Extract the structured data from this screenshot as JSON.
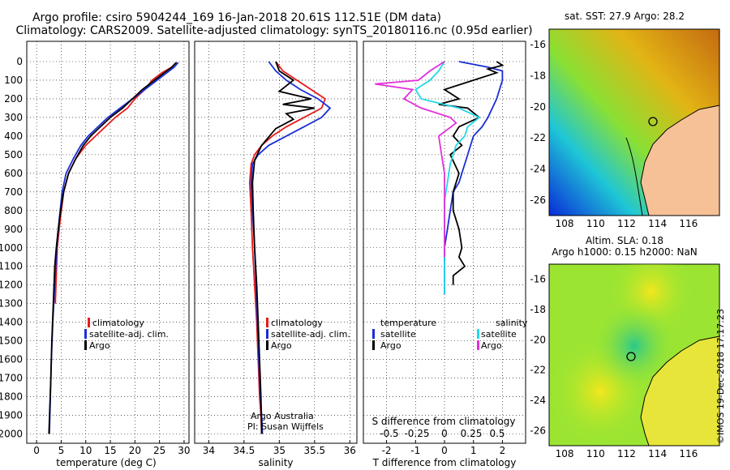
{
  "header": {
    "title_line1": "Argo profile: csiro 5904244_169 16-Jan-2018 20.61S 112.51E (DM data)",
    "title_line2": "Climatology: CARS2009. Satellite-adjusted climatology: synTS_20180116.nc (0.95d earlier)"
  },
  "colors": {
    "climatology": "#e81a1a",
    "satellite_adj": "#1a2ed6",
    "argo": "#000000",
    "satellite_salinity": "#22d8e6",
    "argo_salinity_diff": "#e22fd9",
    "land": "#f7c197"
  },
  "depth_axis": {
    "ticks": [
      0,
      100,
      200,
      300,
      400,
      500,
      600,
      700,
      800,
      900,
      1000,
      1100,
      1200,
      1300,
      1400,
      1500,
      1600,
      1700,
      1800,
      1900,
      2000
    ],
    "range": [
      0,
      2050
    ]
  },
  "chart_data": [
    {
      "type": "line",
      "name": "temperature panel",
      "xlabel": "temperature (deg C)",
      "xlim": [
        -2,
        31
      ],
      "xticks": [
        0,
        5,
        10,
        15,
        20,
        25,
        30
      ],
      "legend": {
        "placement": "bottom",
        "entries": [
          "climatology",
          "satellite-adj. clim.",
          "Argo"
        ]
      },
      "series": [
        {
          "name": "climatology",
          "x": [
            28.5,
            27.5,
            25.5,
            23.5,
            22,
            20,
            18.5,
            16,
            14,
            12,
            10,
            8,
            6.5,
            5.5,
            4.8,
            4.2,
            3.8
          ],
          "y": [
            5,
            30,
            60,
            100,
            150,
            200,
            250,
            300,
            350,
            400,
            450,
            520,
            600,
            700,
            850,
            1000,
            1300
          ]
        },
        {
          "name": "satellite-adj. clim.",
          "x": [
            28.8,
            28,
            26.5,
            24.5,
            22,
            19.5,
            17,
            14.5,
            12.5,
            10.5,
            9,
            7.5,
            6,
            5.2,
            4.6,
            4.1,
            3.7,
            3.3,
            3,
            2.8,
            2.6
          ],
          "y": [
            5,
            30,
            60,
            100,
            150,
            200,
            250,
            300,
            350,
            400,
            450,
            520,
            600,
            700,
            850,
            1000,
            1200,
            1400,
            1600,
            1800,
            2000
          ]
        },
        {
          "name": "Argo",
          "x": [
            28.4,
            27.5,
            26,
            24,
            21.5,
            19.5,
            17.5,
            15,
            13,
            11,
            9.5,
            8,
            6.5,
            5.5,
            4.9,
            4.4,
            4,
            3.7,
            3.4,
            3.1,
            2.9,
            2.7,
            2.5
          ],
          "y": [
            5,
            30,
            60,
            100,
            150,
            200,
            250,
            300,
            350,
            400,
            450,
            520,
            600,
            700,
            800,
            900,
            1000,
            1100,
            1300,
            1500,
            1700,
            1850,
            2000
          ]
        }
      ]
    },
    {
      "type": "line",
      "name": "salinity panel",
      "xlabel": "salinity",
      "xlim": [
        33.8,
        36.1
      ],
      "xticks": [
        34,
        34.5,
        35,
        35.5,
        36
      ],
      "legend": {
        "placement": "bottom",
        "entries": [
          "climatology",
          "satellite-adj. clim.",
          "Argo"
        ]
      },
      "credit": [
        "Argo Australia",
        "PI: Susan Wijffels"
      ],
      "series": [
        {
          "name": "climatology",
          "x": [
            34.95,
            35.05,
            35.25,
            35.45,
            35.65,
            35.6,
            35.35,
            35.1,
            34.9,
            34.75,
            34.65,
            34.6,
            34.58,
            34.6,
            34.62,
            34.65,
            34.68,
            34.7,
            34.72,
            34.74,
            34.75
          ],
          "y": [
            0,
            50,
            100,
            150,
            200,
            250,
            300,
            350,
            400,
            450,
            500,
            550,
            650,
            800,
            1000,
            1200,
            1400,
            1600,
            1800,
            1900,
            2000
          ]
        },
        {
          "name": "satellite-adj. clim.",
          "x": [
            34.85,
            34.95,
            35.1,
            35.3,
            35.55,
            35.72,
            35.6,
            35.35,
            35.1,
            34.85,
            34.7,
            34.62,
            34.6,
            34.62,
            34.65,
            34.67,
            34.69,
            34.71,
            34.73,
            34.75,
            34.76
          ],
          "y": [
            0,
            50,
            100,
            150,
            200,
            250,
            300,
            350,
            400,
            450,
            500,
            550,
            650,
            800,
            1000,
            1200,
            1400,
            1600,
            1800,
            1900,
            2000
          ]
        },
        {
          "name": "Argo",
          "x": [
            34.95,
            35.0,
            35.2,
            35.0,
            35.45,
            35.05,
            35.5,
            35.1,
            35.2,
            34.95,
            34.75,
            34.65,
            34.62,
            34.63,
            34.65,
            34.68,
            34.7,
            34.72,
            34.74,
            34.75
          ],
          "y": [
            0,
            50,
            100,
            160,
            200,
            230,
            250,
            280,
            310,
            360,
            450,
            530,
            650,
            800,
            1000,
            1200,
            1400,
            1600,
            1800,
            2000
          ]
        }
      ]
    },
    {
      "type": "line",
      "name": "difference panel",
      "xlabel": "T difference from climatology",
      "x2label": "S difference from climatology",
      "xlim": [
        -2.8,
        2.8
      ],
      "xticks": [
        -2,
        -1,
        0,
        1,
        2
      ],
      "x2ticks": [
        "-0.5",
        "-0.25",
        "0",
        "0.25",
        "0.5"
      ],
      "legend": {
        "placement": "bottom",
        "temperature_entries": [
          "satellite",
          "Argo"
        ],
        "salinity_entries": [
          "satellite",
          "Argo"
        ],
        "temperature_header": "temperature",
        "salinity_header": "salinity"
      },
      "series": [
        {
          "name": "temperature satellite",
          "x": [
            0.5,
            1.5,
            2,
            2,
            1.8,
            1.5,
            1.3,
            1,
            0.8,
            0.6,
            0.5,
            0.3,
            0.2,
            0.1,
            0,
            0,
            0,
            0
          ],
          "y": [
            0,
            30,
            50,
            100,
            200,
            300,
            350,
            400,
            500,
            600,
            650,
            700,
            800,
            900,
            1000,
            1100,
            1200,
            1250
          ]
        },
        {
          "name": "temperature Argo",
          "x": [
            1.8,
            2,
            1.5,
            1.8,
            1,
            0,
            0.5,
            -0.2,
            0.8,
            1.2,
            0.5,
            0.3,
            0.6,
            0.2,
            0.5,
            0.3,
            0.3,
            0.5,
            0.6,
            0.5,
            0.7,
            0.3,
            0.3
          ],
          "y": [
            0,
            20,
            40,
            60,
            100,
            150,
            200,
            230,
            250,
            300,
            350,
            400,
            450,
            500,
            600,
            700,
            800,
            900,
            1000,
            1050,
            1100,
            1150,
            1200
          ]
        },
        {
          "name": "salinity satellite",
          "x": [
            0,
            -0.2,
            -0.5,
            -1,
            -0.8,
            0.5,
            1.2,
            0.8,
            0.7,
            0.4,
            0.2,
            0.1,
            0,
            0,
            0,
            0,
            0
          ],
          "y": [
            0,
            50,
            100,
            150,
            200,
            250,
            300,
            350,
            400,
            450,
            550,
            650,
            750,
            850,
            1000,
            1100,
            1250
          ]
        },
        {
          "name": "salinity Argo",
          "x": [
            0,
            -0.5,
            -0.9,
            -2.4,
            -1.1,
            -1.4,
            -0.8,
            0.2,
            0.4,
            -0.2,
            -0.1,
            0,
            0,
            0,
            0,
            0
          ],
          "y": [
            0,
            50,
            100,
            120,
            150,
            200,
            250,
            300,
            330,
            400,
            500,
            600,
            700,
            800,
            950,
            1050
          ]
        }
      ]
    },
    {
      "type": "heatmap",
      "name": "SST map",
      "title": "sat. SST: 27.9  Argo: 28.2",
      "xticks": [
        "108",
        "110",
        "112",
        "114",
        "116"
      ],
      "yticks": [
        "-16",
        "-18",
        "-20",
        "-22",
        "-24",
        "-26"
      ],
      "xlim": [
        107,
        118
      ],
      "ylim": [
        -27,
        -15
      ]
    },
    {
      "type": "heatmap",
      "name": "SLA map",
      "title_line1": "Altim. SLA: 0.18",
      "title_line2": "Argo h1000: 0.15 h2000: NaN",
      "xticks": [
        "108",
        "110",
        "112",
        "114",
        "116"
      ],
      "yticks": [
        "-16",
        "-18",
        "-20",
        "-22",
        "-24",
        "-26"
      ],
      "xlim": [
        107,
        118
      ],
      "ylim": [
        -27,
        -15
      ]
    }
  ],
  "footer": {
    "watermark": "©IMOS 19-Dec-2018 17:17:23"
  }
}
